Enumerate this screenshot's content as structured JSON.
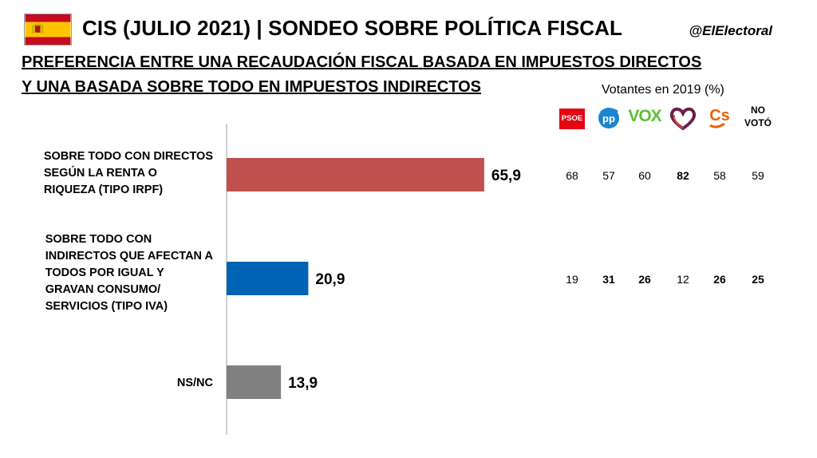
{
  "header": {
    "title": "CIS (JULIO 2021) | SONDEO SOBRE POLÍTICA FISCAL",
    "handle": "@ElElectoral",
    "subtitle_line1": "PREFERENCIA ENTRE UNA RECAUDACIÓN FISCAL BASADA EN IMPUESTOS DIRECTOS",
    "subtitle_line2": "Y UNA BASADA SOBRE TODO EN IMPUESTOS INDIRECTOS",
    "flag_icon": "spain-flag-icon"
  },
  "chart_data": {
    "type": "bar",
    "orientation": "horizontal",
    "categories": [
      [
        "SOBRE TODO CON DIRECTOS",
        "SEGÚN LA RENTA O",
        "RIQUEZA (TIPO IRPF)"
      ],
      [
        "SOBRE TODO CON",
        "INDIRECTOS QUE AFECTAN A",
        "TODOS POR IGUAL Y",
        "GRAVAN CONSUMO/",
        "SERVICIOS (TIPO IVA)"
      ],
      [
        "NS/NC"
      ]
    ],
    "values": [
      65.9,
      20.9,
      13.9
    ],
    "value_labels": [
      "65,9",
      "20,9",
      "13,9"
    ],
    "colors": [
      "#c0504d",
      "#0063b4",
      "#808080"
    ],
    "xlim": [
      0,
      100
    ],
    "grid": false,
    "legend": "none"
  },
  "voters_table": {
    "caption": "Votantes en 2019 (%)",
    "parties": [
      {
        "name": "PSOE",
        "icon": "psoe-logo-icon"
      },
      {
        "name": "PP",
        "icon": "pp-logo-icon"
      },
      {
        "name": "VOX",
        "icon": "vox-logo-icon"
      },
      {
        "name": "Unidas Podemos",
        "icon": "up-heart-logo-icon"
      },
      {
        "name": "Cs",
        "icon": "cs-logo-icon"
      },
      {
        "name_line1": "NO",
        "name_line2": "VOTÓ",
        "icon": "none"
      }
    ],
    "rows": [
      {
        "values": [
          "68",
          "57",
          "60",
          "82",
          "58",
          "59"
        ],
        "bold": [
          false,
          false,
          false,
          true,
          false,
          false
        ]
      },
      {
        "values": [
          "19",
          "31",
          "26",
          "12",
          "26",
          "25"
        ],
        "bold": [
          false,
          true,
          true,
          false,
          true,
          true
        ]
      }
    ]
  }
}
